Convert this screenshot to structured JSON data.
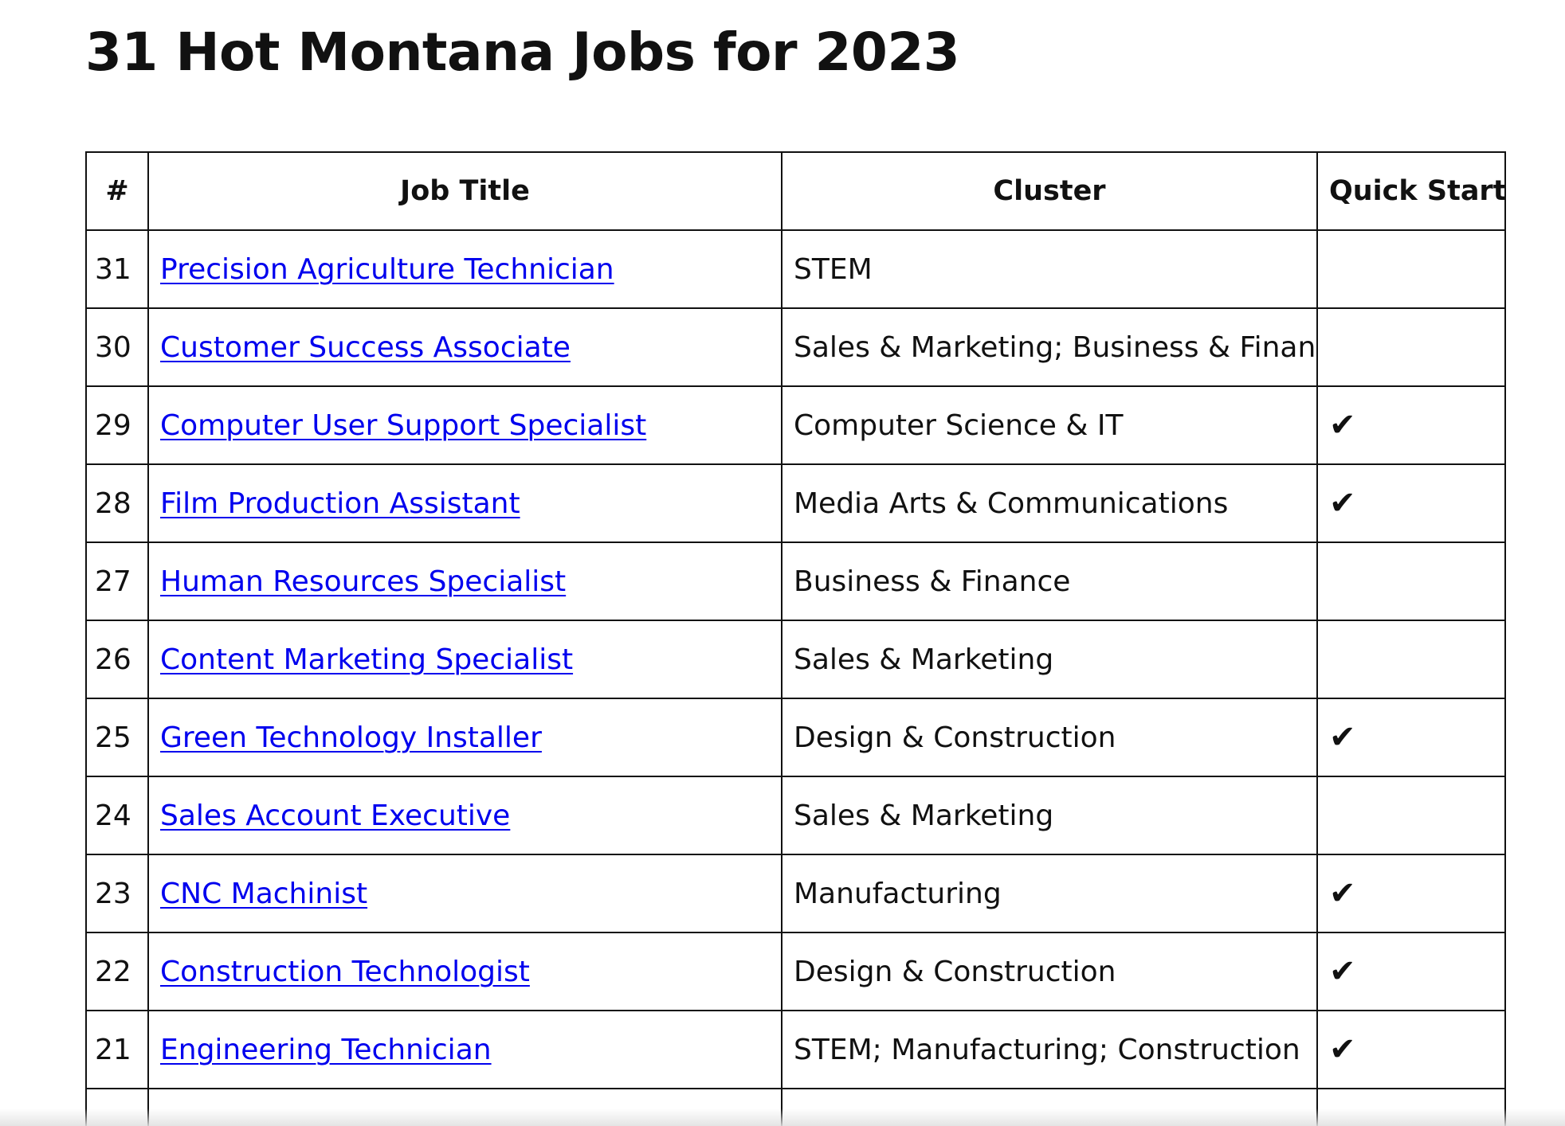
{
  "page_title": "31 Hot Montana Jobs for 2023",
  "table": {
    "headers": {
      "num": "#",
      "job_title": "Job Title",
      "cluster": "Cluster",
      "quick_start": "Quick Start"
    },
    "rows": [
      {
        "num": "31",
        "title": "Precision Agriculture Technician",
        "cluster": "STEM",
        "quick_start": ""
      },
      {
        "num": "30",
        "title": "Customer Success Associate",
        "cluster": "Sales & Marketing; Business & Finance",
        "quick_start": ""
      },
      {
        "num": "29",
        "title": "Computer User Support Specialist",
        "cluster": "Computer Science & IT",
        "quick_start": "✔"
      },
      {
        "num": "28",
        "title": "Film Production Assistant",
        "cluster": "Media Arts & Communications",
        "quick_start": "✔"
      },
      {
        "num": "27",
        "title": "Human Resources Specialist",
        "cluster": "Business & Finance",
        "quick_start": ""
      },
      {
        "num": "26",
        "title": "Content Marketing Specialist",
        "cluster": "Sales & Marketing",
        "quick_start": ""
      },
      {
        "num": "25",
        "title": "Green Technology Installer",
        "cluster": "Design & Construction",
        "quick_start": "✔"
      },
      {
        "num": "24",
        "title": "Sales Account Executive",
        "cluster": "Sales & Marketing",
        "quick_start": ""
      },
      {
        "num": "23",
        "title": "CNC Machinist",
        "cluster": "Manufacturing",
        "quick_start": "✔"
      },
      {
        "num": "22",
        "title": "Construction Technologist",
        "cluster": "Design & Construction",
        "quick_start": "✔"
      },
      {
        "num": "21",
        "title": "Engineering Technician",
        "cluster": "STEM; Manufacturing; Construction",
        "quick_start": "✔"
      },
      {
        "num": "",
        "title": "",
        "cluster": "",
        "quick_start": ""
      }
    ]
  },
  "colors": {
    "link": "#0000ee",
    "text": "#111111",
    "border": "#111111",
    "background": "#ffffff"
  }
}
